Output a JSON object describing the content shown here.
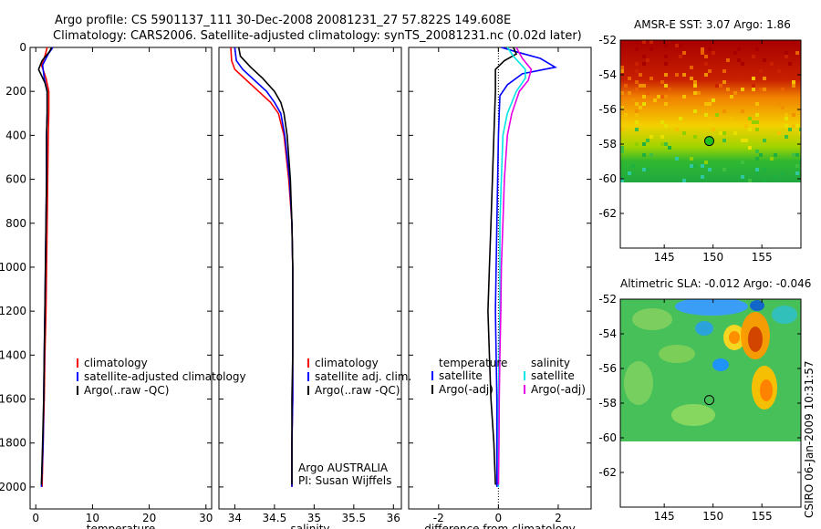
{
  "header": {
    "line1": "Argo profile: CS 5901137_111 30-Dec-2008 20081231_27 57.822S 149.608E",
    "line2": "Climatology: CARS2006. Satellite-adjusted climatology: synTS_20081231.nc (0.02d later)"
  },
  "side_note": "CSIRO 06-Jan-2009 10:31:57",
  "colors": {
    "climatology": "#ff0000",
    "satellite": "#0000ff",
    "argo": "#000000",
    "sat_salinity": "#00e5e5",
    "argo_adj_salinity": "#e600e6"
  },
  "chart_data": [
    {
      "type": "line",
      "name": "temperature",
      "xlabel": "temperature",
      "xlim": [
        -1,
        31
      ],
      "xticks": [
        0,
        10,
        20,
        30
      ],
      "ylim": [
        2100,
        0
      ],
      "yticks": [
        0,
        200,
        400,
        600,
        800,
        1000,
        1200,
        1400,
        1600,
        1800,
        2000
      ],
      "legend": [
        "climatology",
        "satellite-adjusted climatology",
        "Argo(..raw -QC)"
      ],
      "series": [
        {
          "name": "climatology",
          "color": "#ff0000",
          "points": [
            [
              2.0,
              0
            ],
            [
              1.6,
              40
            ],
            [
              1.0,
              80
            ],
            [
              1.8,
              140
            ],
            [
              2.3,
              200
            ],
            [
              2.3,
              300
            ],
            [
              2.2,
              400
            ],
            [
              2.1,
              600
            ],
            [
              2.0,
              800
            ],
            [
              1.9,
              1000
            ],
            [
              1.8,
              1200
            ],
            [
              1.6,
              1400
            ],
            [
              1.5,
              1600
            ],
            [
              1.3,
              1800
            ],
            [
              1.1,
              2000
            ]
          ]
        },
        {
          "name": "satellite-adjusted climatology",
          "color": "#0000ff",
          "points": [
            [
              3.0,
              0
            ],
            [
              2.2,
              30
            ],
            [
              1.2,
              80
            ],
            [
              1.5,
              140
            ],
            [
              2.0,
              200
            ],
            [
              2.0,
              300
            ],
            [
              1.9,
              400
            ],
            [
              1.9,
              600
            ],
            [
              1.8,
              800
            ],
            [
              1.7,
              1000
            ],
            [
              1.6,
              1200
            ],
            [
              1.5,
              1400
            ],
            [
              1.4,
              1600
            ],
            [
              1.3,
              1800
            ],
            [
              1.0,
              2000
            ]
          ]
        },
        {
          "name": "Argo(..raw -QC)",
          "color": "#000000",
          "points": [
            [
              2.8,
              0
            ],
            [
              2.4,
              20
            ],
            [
              1.1,
              60
            ],
            [
              0.5,
              100
            ],
            [
              1.6,
              160
            ],
            [
              2.0,
              200
            ],
            [
              2.0,
              300
            ],
            [
              1.9,
              400
            ],
            [
              1.9,
              600
            ],
            [
              1.8,
              800
            ],
            [
              1.7,
              1000
            ],
            [
              1.6,
              1200
            ],
            [
              1.5,
              1400
            ],
            [
              1.4,
              1600
            ],
            [
              1.2,
              1800
            ],
            [
              1.0,
              1990
            ]
          ]
        }
      ]
    },
    {
      "type": "line",
      "name": "salinity",
      "xlabel": "salinity",
      "xlim": [
        33.8,
        36.1
      ],
      "xticks": [
        34,
        34.5,
        35,
        35.5,
        36
      ],
      "xtick_labels": [
        "34",
        "34.5",
        "35",
        "35.5",
        "36"
      ],
      "ylim": [
        2100,
        0
      ],
      "legend": [
        "climatology",
        "satellite adj. clim.",
        "Argo(..raw -QC)"
      ],
      "annotation": [
        "Argo AUSTRALIA",
        "PI: Susan Wijffels"
      ],
      "series": [
        {
          "name": "climatology",
          "color": "#ff0000",
          "points": [
            [
              33.95,
              0
            ],
            [
              33.96,
              60
            ],
            [
              34.0,
              100
            ],
            [
              34.15,
              150
            ],
            [
              34.3,
              200
            ],
            [
              34.45,
              250
            ],
            [
              34.55,
              300
            ],
            [
              34.62,
              400
            ],
            [
              34.68,
              600
            ],
            [
              34.72,
              800
            ],
            [
              34.73,
              1000
            ],
            [
              34.73,
              1200
            ],
            [
              34.73,
              1400
            ],
            [
              34.73,
              1600
            ],
            [
              34.72,
              1800
            ],
            [
              34.72,
              2000
            ]
          ]
        },
        {
          "name": "satellite adj. clim.",
          "color": "#0000ff",
          "points": [
            [
              34.0,
              0
            ],
            [
              34.02,
              60
            ],
            [
              34.1,
              100
            ],
            [
              34.25,
              150
            ],
            [
              34.4,
              200
            ],
            [
              34.5,
              250
            ],
            [
              34.58,
              300
            ],
            [
              34.63,
              400
            ],
            [
              34.69,
              600
            ],
            [
              34.72,
              800
            ],
            [
              34.73,
              1000
            ],
            [
              34.73,
              1200
            ],
            [
              34.73,
              1400
            ],
            [
              34.73,
              1600
            ],
            [
              34.72,
              1800
            ],
            [
              34.72,
              2000
            ]
          ]
        },
        {
          "name": "Argo(..raw -QC)",
          "color": "#000000",
          "points": [
            [
              34.05,
              0
            ],
            [
              34.07,
              40
            ],
            [
              34.2,
              90
            ],
            [
              34.35,
              140
            ],
            [
              34.5,
              200
            ],
            [
              34.58,
              250
            ],
            [
              34.62,
              300
            ],
            [
              34.66,
              400
            ],
            [
              34.7,
              600
            ],
            [
              34.72,
              800
            ],
            [
              34.73,
              1000
            ],
            [
              34.73,
              1200
            ],
            [
              34.73,
              1400
            ],
            [
              34.72,
              1600
            ],
            [
              34.72,
              1800
            ],
            [
              34.72,
              1990
            ]
          ]
        }
      ]
    },
    {
      "type": "line",
      "name": "difference",
      "xlabel": "difference from climatology",
      "xlim": [
        -3,
        3.1
      ],
      "xticks": [
        -2,
        0,
        2
      ],
      "ylim": [
        2100,
        0
      ],
      "legend_left": {
        "title": "temperature",
        "items": [
          "satellite",
          "Argo(-adj)"
        ]
      },
      "legend_right": {
        "title": "salinity",
        "items": [
          "satellite",
          "Argo(-adj)"
        ]
      },
      "series": [
        {
          "name": "temperature satellite",
          "color": "#0000ff",
          "points": [
            [
              0.1,
              0
            ],
            [
              0.6,
              20
            ],
            [
              1.4,
              50
            ],
            [
              1.9,
              90
            ],
            [
              0.8,
              120
            ],
            [
              0.3,
              170
            ],
            [
              0.05,
              220
            ],
            [
              0,
              400
            ],
            [
              -0.05,
              800
            ],
            [
              -0.1,
              1200
            ],
            [
              -0.05,
              1600
            ],
            [
              -0.05,
              2000
            ]
          ]
        },
        {
          "name": "temperature Argo(-adj)",
          "color": "#000000",
          "points": [
            [
              0.5,
              0
            ],
            [
              0.6,
              30
            ],
            [
              0.2,
              60
            ],
            [
              -0.1,
              100
            ],
            [
              -0.1,
              200
            ],
            [
              -0.15,
              400
            ],
            [
              -0.2,
              600
            ],
            [
              -0.25,
              800
            ],
            [
              -0.3,
              1000
            ],
            [
              -0.35,
              1200
            ],
            [
              -0.3,
              1400
            ],
            [
              -0.25,
              1600
            ],
            [
              -0.15,
              1800
            ],
            [
              -0.1,
              1990
            ]
          ]
        },
        {
          "name": "salinity satellite",
          "color": "#00e5e5",
          "points": [
            [
              0.3,
              0
            ],
            [
              0.5,
              40
            ],
            [
              0.9,
              100
            ],
            [
              0.9,
              140
            ],
            [
              0.6,
              200
            ],
            [
              0.3,
              300
            ],
            [
              0.15,
              400
            ],
            [
              0.1,
              600
            ],
            [
              0.05,
              800
            ],
            [
              0.05,
              1200
            ],
            [
              0.0,
              1600
            ],
            [
              0.0,
              2000
            ]
          ]
        },
        {
          "name": "salinity Argo(-adj)",
          "color": "#e600e6",
          "points": [
            [
              0.6,
              0
            ],
            [
              0.8,
              50
            ],
            [
              1.1,
              100
            ],
            [
              1.0,
              150
            ],
            [
              0.7,
              200
            ],
            [
              0.45,
              300
            ],
            [
              0.3,
              400
            ],
            [
              0.2,
              600
            ],
            [
              0.15,
              800
            ],
            [
              0.1,
              1000
            ],
            [
              0.08,
              1200
            ],
            [
              0.05,
              1400
            ],
            [
              0.03,
              1600
            ],
            [
              0.02,
              1800
            ],
            [
              0.0,
              1990
            ]
          ]
        }
      ]
    },
    {
      "type": "heatmap",
      "name": "AMSR-E SST map",
      "title": "AMSR-E SST: 3.07  Argo: 1.86",
      "xlim": [
        140.5,
        159
      ],
      "ylim": [
        -64,
        -52
      ],
      "xticks": [
        145,
        150,
        155
      ],
      "yticks": [
        -52,
        -54,
        -56,
        -58,
        -60,
        -62
      ],
      "data_extent_y": [
        -60,
        -52
      ],
      "marker": {
        "lon": 149.608,
        "lat": -57.822
      }
    },
    {
      "type": "heatmap",
      "name": "Altimetric SLA map",
      "title": "Altimetric SLA: -0.012  Argo: -0.046",
      "xlim": [
        140.5,
        159
      ],
      "ylim": [
        -64,
        -52
      ],
      "xticks": [
        145,
        150,
        155
      ],
      "yticks": [
        -52,
        -54,
        -56,
        -58,
        -60,
        -62
      ],
      "data_extent_y": [
        -60,
        -52
      ],
      "marker": {
        "lon": 149.608,
        "lat": -57.822
      }
    }
  ]
}
